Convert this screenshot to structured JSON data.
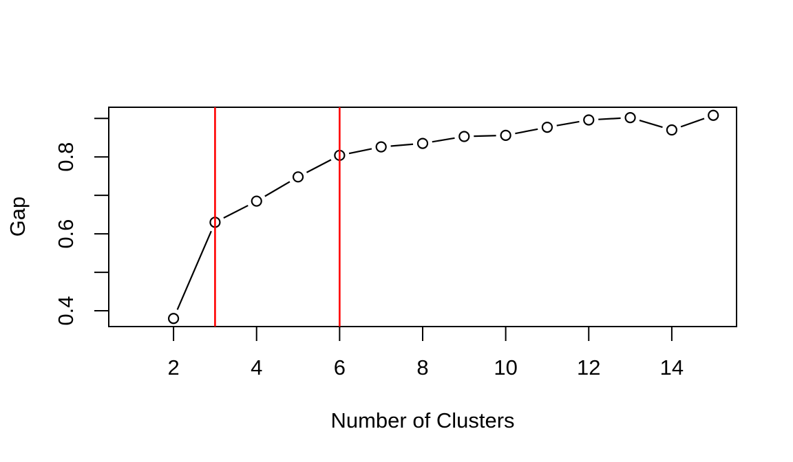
{
  "figure": {
    "title": "",
    "background": "#ffffff"
  },
  "chart_data": {
    "type": "line",
    "title": "",
    "xlabel": "Number of Clusters",
    "ylabel": "Gap",
    "x": [
      2,
      3,
      4,
      5,
      6,
      7,
      8,
      9,
      10,
      11,
      12,
      13,
      14,
      15
    ],
    "y": [
      0.38,
      0.63,
      0.685,
      0.748,
      0.804,
      0.826,
      0.835,
      0.853,
      0.856,
      0.877,
      0.896,
      0.902,
      0.87,
      0.908
    ],
    "xlim": [
      0.44,
      15.56
    ],
    "ylim": [
      0.359,
      0.929
    ],
    "xtick_values": [
      2,
      4,
      6,
      8,
      10,
      12,
      14
    ],
    "xtick_labels": [
      "2",
      "4",
      "6",
      "8",
      "10",
      "12",
      "14"
    ],
    "ytick_mark_values": [
      0.4,
      0.5,
      0.6,
      0.7,
      0.8,
      0.9
    ],
    "ytick_label_values": [
      0.4,
      0.6,
      0.8
    ],
    "ytick_labels": [
      "0.4",
      "0.6",
      "0.8"
    ],
    "grid": false,
    "legend": null,
    "marker": "open-circle",
    "line_style": "point-to-point segments with gaps around markers (R type='b')",
    "vlines": [
      {
        "x": 3,
        "color": "#ff0000"
      },
      {
        "x": 6,
        "color": "#ff0000"
      }
    ],
    "colors": {
      "series_line": "#000000",
      "marker_stroke": "#000000",
      "marker_fill": "#ffffff",
      "reference_line": "#ff0000",
      "axis": "#000000",
      "text": "#000000",
      "background": "#ffffff"
    }
  }
}
